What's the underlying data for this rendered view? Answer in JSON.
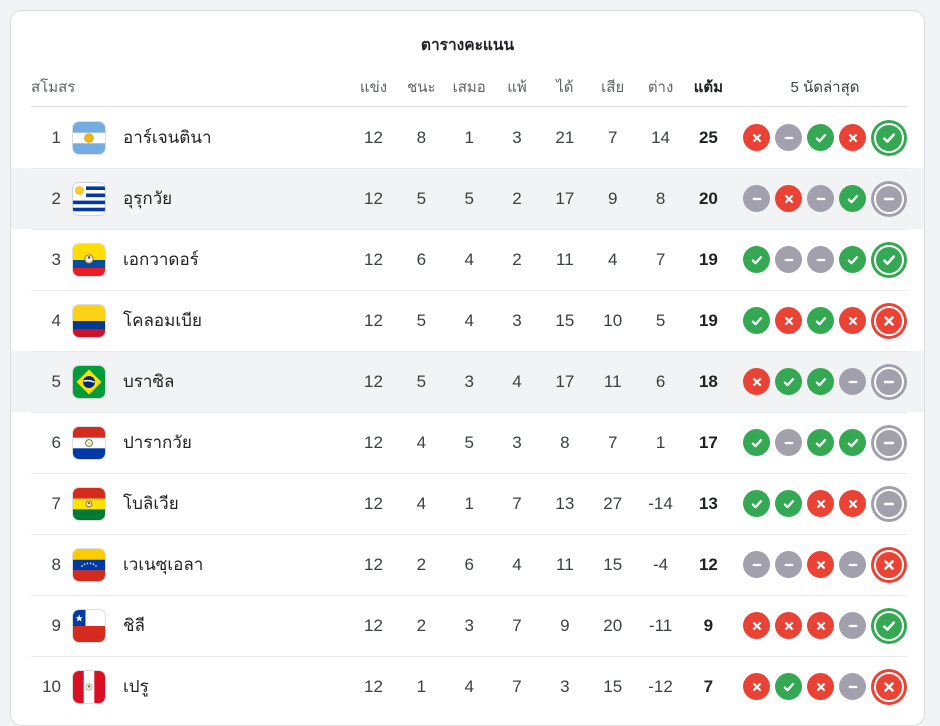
{
  "title": "ตารางคะแนน",
  "colors": {
    "win": "#34a853",
    "loss": "#ea4335",
    "draw": "#a2a0ad"
  },
  "table": {
    "headers": {
      "club": "สโมสร",
      "played": "แข่ง",
      "win": "ชนะ",
      "draw": "เสมอ",
      "loss": "แพ้",
      "gf": "ได้",
      "ga": "เสีย",
      "gd": "ต่าง",
      "pts": "แต้ม",
      "last5": "5 นัดล่าสุด"
    },
    "rows": [
      {
        "rank": "1",
        "team": "อาร์เจนตินา",
        "flag": "argentina",
        "flag_icon": "argentina-flag-icon",
        "played": "12",
        "win": "8",
        "draw": "1",
        "loss": "3",
        "gf": "21",
        "ga": "7",
        "gd": "14",
        "pts": "25",
        "form": [
          "L",
          "D",
          "W",
          "L",
          "W"
        ],
        "highlighted": false
      },
      {
        "rank": "2",
        "team": "อุรุกวัย",
        "flag": "uruguay",
        "flag_icon": "uruguay-flag-icon",
        "played": "12",
        "win": "5",
        "draw": "5",
        "loss": "2",
        "gf": "17",
        "ga": "9",
        "gd": "8",
        "pts": "20",
        "form": [
          "D",
          "L",
          "D",
          "W",
          "D"
        ],
        "highlighted": true
      },
      {
        "rank": "3",
        "team": "เอกวาดอร์",
        "flag": "ecuador",
        "flag_icon": "ecuador-flag-icon",
        "played": "12",
        "win": "6",
        "draw": "4",
        "loss": "2",
        "gf": "11",
        "ga": "4",
        "gd": "7",
        "pts": "19",
        "form": [
          "W",
          "D",
          "D",
          "W",
          "W"
        ],
        "highlighted": false
      },
      {
        "rank": "4",
        "team": "โคลอมเบีย",
        "flag": "colombia",
        "flag_icon": "colombia-flag-icon",
        "played": "12",
        "win": "5",
        "draw": "4",
        "loss": "3",
        "gf": "15",
        "ga": "10",
        "gd": "5",
        "pts": "19",
        "form": [
          "W",
          "L",
          "W",
          "L",
          "L"
        ],
        "highlighted": false
      },
      {
        "rank": "5",
        "team": "บราซิล",
        "flag": "brazil",
        "flag_icon": "brazil-flag-icon",
        "played": "12",
        "win": "5",
        "draw": "3",
        "loss": "4",
        "gf": "17",
        "ga": "11",
        "gd": "6",
        "pts": "18",
        "form": [
          "L",
          "W",
          "W",
          "D",
          "D"
        ],
        "highlighted": true
      },
      {
        "rank": "6",
        "team": "ปารากวัย",
        "flag": "paraguay",
        "flag_icon": "paraguay-flag-icon",
        "played": "12",
        "win": "4",
        "draw": "5",
        "loss": "3",
        "gf": "8",
        "ga": "7",
        "gd": "1",
        "pts": "17",
        "form": [
          "W",
          "D",
          "W",
          "W",
          "D"
        ],
        "highlighted": false
      },
      {
        "rank": "7",
        "team": "โบลิเวีย",
        "flag": "bolivia",
        "flag_icon": "bolivia-flag-icon",
        "played": "12",
        "win": "4",
        "draw": "1",
        "loss": "7",
        "gf": "13",
        "ga": "27",
        "gd": "-14",
        "pts": "13",
        "form": [
          "W",
          "W",
          "L",
          "L",
          "D"
        ],
        "highlighted": false
      },
      {
        "rank": "8",
        "team": "เวเนซุเอลา",
        "flag": "venezuela",
        "flag_icon": "venezuela-flag-icon",
        "played": "12",
        "win": "2",
        "draw": "6",
        "loss": "4",
        "gf": "11",
        "ga": "15",
        "gd": "-4",
        "pts": "12",
        "form": [
          "D",
          "D",
          "L",
          "D",
          "L"
        ],
        "highlighted": false
      },
      {
        "rank": "9",
        "team": "ชิลี",
        "flag": "chile",
        "flag_icon": "chile-flag-icon",
        "played": "12",
        "win": "2",
        "draw": "3",
        "loss": "7",
        "gf": "9",
        "ga": "20",
        "gd": "-11",
        "pts": "9",
        "form": [
          "L",
          "L",
          "L",
          "D",
          "W"
        ],
        "highlighted": false
      },
      {
        "rank": "10",
        "team": "เปรู",
        "flag": "peru",
        "flag_icon": "peru-flag-icon",
        "played": "12",
        "win": "1",
        "draw": "4",
        "loss": "7",
        "gf": "3",
        "ga": "15",
        "gd": "-12",
        "pts": "7",
        "form": [
          "L",
          "W",
          "L",
          "D",
          "L"
        ],
        "highlighted": false
      }
    ]
  }
}
